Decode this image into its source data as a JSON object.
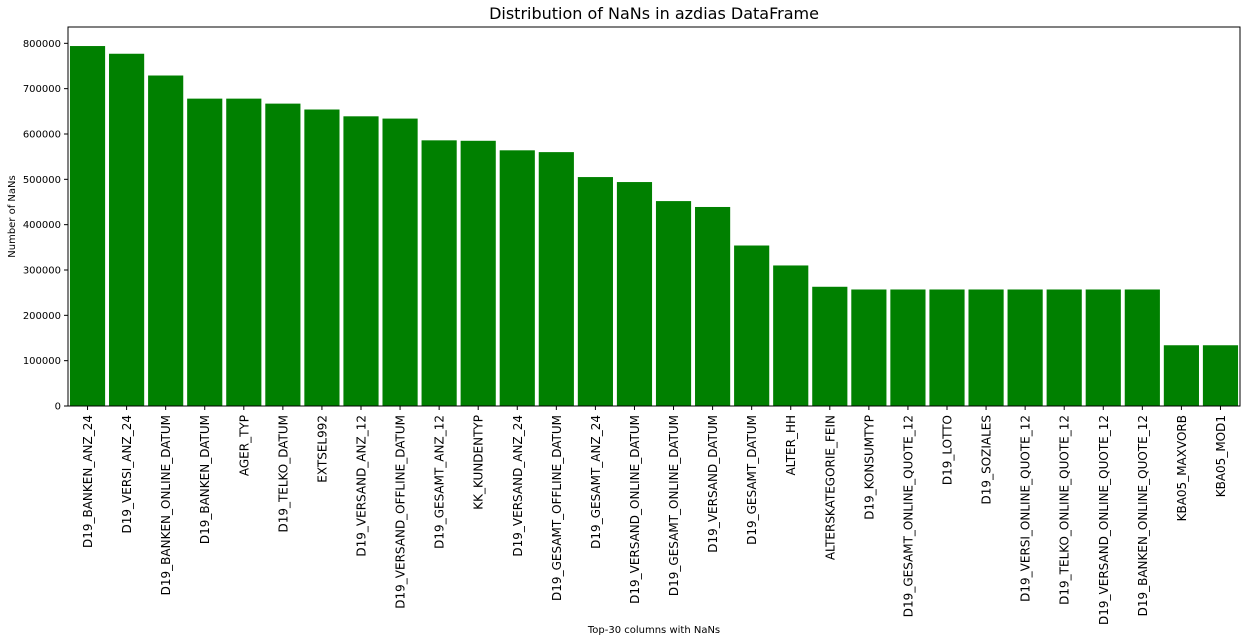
{
  "chart_data": {
    "type": "bar",
    "title": "Distribution of NaNs in azdias DataFrame",
    "xlabel": "Top-30 columns with NaNs",
    "ylabel": "Number of NaNs",
    "ylim": [
      0,
      836000
    ],
    "yticks": [
      0,
      100000,
      200000,
      300000,
      400000,
      500000,
      600000,
      700000,
      800000
    ],
    "ytick_labels": [
      "0",
      "100000",
      "200000",
      "300000",
      "400000",
      "500000",
      "600000",
      "700000",
      "800000"
    ],
    "bar_color": "#008000",
    "grid": false,
    "legend": "none",
    "categories": [
      "D19_BANKEN_ANZ_24",
      "D19_VERSI_ANZ_24",
      "D19_BANKEN_ONLINE_DATUM",
      "D19_BANKEN_DATUM",
      "AGER_TYP",
      "D19_TELKO_DATUM",
      "EXTSEL992",
      "D19_VERSAND_ANZ_12",
      "D19_VERSAND_OFFLINE_DATUM",
      "D19_GESAMT_ANZ_12",
      "KK_KUNDENTYP",
      "D19_VERSAND_ANZ_24",
      "D19_GESAMT_OFFLINE_DATUM",
      "D19_GESAMT_ANZ_24",
      "D19_VERSAND_ONLINE_DATUM",
      "D19_GESAMT_ONLINE_DATUM",
      "D19_VERSAND_DATUM",
      "D19_GESAMT_DATUM",
      "ALTER_HH",
      "ALTERSKATEGORIE_FEIN",
      "D19_KONSUMTYP",
      "D19_GESAMT_ONLINE_QUOTE_12",
      "D19_LOTTO",
      "D19_SOZIALES",
      "D19_VERSI_ONLINE_QUOTE_12",
      "D19_TELKO_ONLINE_QUOTE_12",
      "D19_VERSAND_ONLINE_QUOTE_12",
      "D19_BANKEN_ONLINE_QUOTE_12",
      "KBA05_MAXVORB",
      "KBA05_MOD1"
    ],
    "values": [
      794000,
      777000,
      729000,
      678000,
      678000,
      667000,
      654000,
      639000,
      634000,
      586000,
      585000,
      564000,
      560000,
      505000,
      494000,
      452000,
      439000,
      354000,
      310000,
      263000,
      257000,
      257000,
      257000,
      257000,
      257000,
      257000,
      257000,
      257000,
      134000,
      134000
    ]
  }
}
